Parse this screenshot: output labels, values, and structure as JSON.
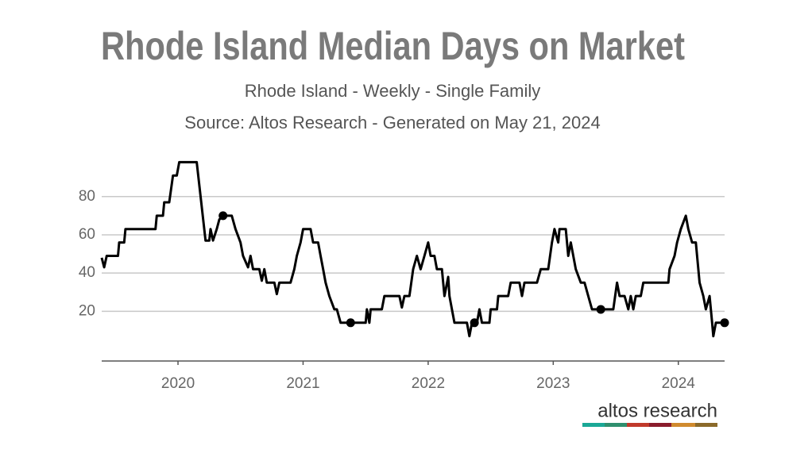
{
  "chart_data": {
    "type": "line",
    "title": "Rhode Island Median Days on Market",
    "subtitle": "Rhode Island - Weekly - Single Family",
    "source": "Source: Altos Research - Generated on May 21, 2024",
    "brand": "altos research",
    "xlim": [
      2019.39,
      2024.37
    ],
    "xticks": [
      2020,
      2021,
      2022,
      2023,
      2024
    ],
    "ylim": [
      -6,
      99
    ],
    "yticks": [
      20,
      40,
      60,
      80
    ],
    "grid": true,
    "color": "#000000",
    "x": [
      2019.39,
      2019.41,
      2019.43,
      2019.52,
      2019.53,
      2019.57,
      2019.58,
      2019.82,
      2019.83,
      2019.88,
      2019.89,
      2019.93,
      2019.96,
      2019.99,
      2020.01,
      2020.15,
      2020.22,
      2020.25,
      2020.26,
      2020.28,
      2020.31,
      2020.33,
      2020.36,
      2020.43,
      2020.46,
      2020.5,
      2020.52,
      2020.56,
      2020.58,
      2020.6,
      2020.65,
      2020.67,
      2020.69,
      2020.71,
      2020.77,
      2020.79,
      2020.81,
      2020.9,
      2020.93,
      2020.95,
      2020.98,
      2021.0,
      2021.06,
      2021.08,
      2021.12,
      2021.14,
      2021.16,
      2021.18,
      2021.21,
      2021.25,
      2021.27,
      2021.3,
      2021.5,
      2021.51,
      2021.53,
      2021.54,
      2021.63,
      2021.65,
      2021.77,
      2021.79,
      2021.81,
      2021.85,
      2021.88,
      2021.91,
      2021.94,
      2021.97,
      2022.0,
      2022.02,
      2022.05,
      2022.07,
      2022.11,
      2022.13,
      2022.16,
      2022.17,
      2022.19,
      2022.21,
      2022.31,
      2022.33,
      2022.35,
      2022.39,
      2022.41,
      2022.43,
      2022.49,
      2022.5,
      2022.55,
      2022.56,
      2022.64,
      2022.66,
      2022.73,
      2022.75,
      2022.77,
      2022.87,
      2022.9,
      2022.96,
      2022.99,
      2023.01,
      2023.04,
      2023.05,
      2023.1,
      2023.12,
      2023.14,
      2023.18,
      2023.22,
      2023.25,
      2023.28,
      2023.31,
      2023.48,
      2023.51,
      2023.53,
      2023.57,
      2023.6,
      2023.62,
      2023.64,
      2023.66,
      2023.7,
      2023.72,
      2023.92,
      2023.93,
      2023.97,
      2023.99,
      2024.02,
      2024.06,
      2024.08,
      2024.11,
      2024.14,
      2024.17,
      2024.2,
      2024.22,
      2024.25,
      2024.27,
      2024.28,
      2024.3,
      2024.34,
      2024.37
    ],
    "values": [
      48,
      43,
      49,
      49,
      56,
      56,
      63,
      63,
      70,
      70,
      77,
      77,
      91,
      91,
      98,
      98,
      57,
      57,
      63,
      57,
      63,
      68,
      70,
      70,
      63,
      56,
      49,
      43,
      49,
      42,
      42,
      36,
      42,
      35,
      35,
      29,
      35,
      35,
      42,
      49,
      56,
      63,
      63,
      56,
      56,
      49,
      42,
      35,
      28,
      21,
      21,
      14,
      14,
      21,
      14,
      21,
      21,
      28,
      28,
      22,
      28,
      28,
      42,
      49,
      42,
      49,
      56,
      49,
      49,
      42,
      42,
      28,
      38,
      28,
      21,
      14,
      14,
      7,
      14,
      14,
      21,
      14,
      14,
      21,
      21,
      28,
      28,
      35,
      35,
      28,
      35,
      35,
      42,
      42,
      56,
      63,
      56,
      63,
      63,
      49,
      56,
      42,
      35,
      35,
      28,
      21,
      21,
      35,
      28,
      28,
      21,
      28,
      21,
      28,
      28,
      35,
      35,
      42,
      49,
      56,
      63,
      70,
      63,
      56,
      56,
      35,
      28,
      21,
      28,
      14,
      7,
      14,
      14,
      14
    ],
    "points": {
      "x": [
        2020.36,
        2021.38,
        2022.37,
        2023.38,
        2024.37
      ],
      "values": [
        70,
        14,
        14,
        21,
        14
      ]
    }
  }
}
